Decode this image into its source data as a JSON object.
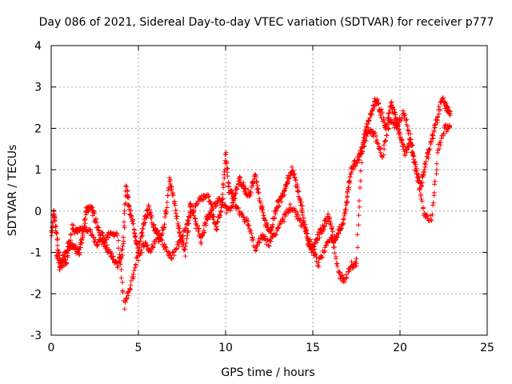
{
  "chart_data": {
    "type": "scatter",
    "title": "Day 086 of 2021, Sidereal Day-to-day VTEC variation (SDTVAR) for receiver p777",
    "xlabel": "GPS time / hours",
    "ylabel": "SDTVAR / TECUs",
    "xlim": [
      0,
      25
    ],
    "ylim": [
      -3,
      4
    ],
    "xticks": [
      0,
      5,
      10,
      15,
      20,
      25
    ],
    "yticks": [
      -3,
      -2,
      -1,
      0,
      1,
      2,
      3,
      4
    ],
    "grid": true,
    "marker": "+",
    "color": "#ff0000",
    "series": [
      {
        "name": "SDTVAR",
        "anchors": [
          [
            0.0,
            -0.7
          ],
          [
            0.15,
            0.0
          ],
          [
            0.3,
            -0.5
          ],
          [
            0.5,
            -1.4
          ],
          [
            0.7,
            -1.1
          ],
          [
            1.0,
            -0.8
          ],
          [
            1.3,
            -0.9
          ],
          [
            1.6,
            -1.0
          ],
          [
            1.8,
            -0.6
          ],
          [
            2.0,
            0.0
          ],
          [
            2.3,
            0.1
          ],
          [
            2.6,
            -0.3
          ],
          [
            2.9,
            -0.6
          ],
          [
            3.2,
            -0.9
          ],
          [
            3.5,
            -1.1
          ],
          [
            3.8,
            -1.3
          ],
          [
            4.1,
            -1.0
          ],
          [
            4.3,
            0.6
          ],
          [
            4.5,
            0.0
          ],
          [
            4.8,
            -0.5
          ],
          [
            5.0,
            -1.0
          ],
          [
            5.3,
            -0.3
          ],
          [
            5.6,
            0.1
          ],
          [
            5.9,
            -0.4
          ],
          [
            6.2,
            -0.7
          ],
          [
            6.5,
            -0.3
          ],
          [
            6.8,
            0.8
          ],
          [
            7.1,
            0.1
          ],
          [
            7.4,
            -0.6
          ],
          [
            7.7,
            -1.0
          ],
          [
            8.0,
            0.2
          ],
          [
            8.3,
            -0.3
          ],
          [
            8.6,
            -0.7
          ],
          [
            8.9,
            -0.2
          ],
          [
            9.2,
            0.0
          ],
          [
            9.5,
            -0.4
          ],
          [
            9.8,
            0.2
          ],
          [
            10.0,
            1.4
          ],
          [
            10.2,
            0.5
          ],
          [
            10.5,
            0.3
          ],
          [
            10.8,
            0.8
          ],
          [
            11.1,
            0.5
          ],
          [
            11.4,
            0.4
          ],
          [
            11.7,
            0.9
          ],
          [
            12.0,
            0.2
          ],
          [
            12.3,
            -0.3
          ],
          [
            12.6,
            -0.5
          ],
          [
            12.9,
            0.1
          ],
          [
            13.2,
            0.3
          ],
          [
            13.5,
            0.7
          ],
          [
            13.8,
            1.0
          ],
          [
            14.1,
            0.6
          ],
          [
            14.4,
            0.0
          ],
          [
            14.7,
            -0.7
          ],
          [
            15.0,
            -1.0
          ],
          [
            15.3,
            -0.6
          ],
          [
            15.6,
            -0.4
          ],
          [
            15.9,
            -0.1
          ],
          [
            16.2,
            -0.7
          ],
          [
            16.5,
            -0.5
          ],
          [
            16.8,
            -0.2
          ],
          [
            17.0,
            0.4
          ],
          [
            17.2,
            1.0
          ],
          [
            17.5,
            1.2
          ],
          [
            17.8,
            1.5
          ],
          [
            18.0,
            1.9
          ],
          [
            18.3,
            2.3
          ],
          [
            18.6,
            2.7
          ],
          [
            18.9,
            2.4
          ],
          [
            19.2,
            2.0
          ],
          [
            19.5,
            2.6
          ],
          [
            19.8,
            2.2
          ],
          [
            20.0,
            1.8
          ],
          [
            20.3,
            1.4
          ],
          [
            20.6,
            1.7
          ],
          [
            20.9,
            1.0
          ],
          [
            21.2,
            0.6
          ],
          [
            21.5,
            1.2
          ],
          [
            21.8,
            1.7
          ],
          [
            22.1,
            2.2
          ],
          [
            22.4,
            2.7
          ],
          [
            22.7,
            2.5
          ],
          [
            22.9,
            2.3
          ]
        ],
        "secondary": [
          [
            0.3,
            -1.1
          ],
          [
            0.6,
            -1.3
          ],
          [
            0.9,
            -1.2
          ],
          [
            1.2,
            -0.4
          ],
          [
            1.5,
            -0.5
          ],
          [
            1.8,
            -0.4
          ],
          [
            2.2,
            -0.5
          ],
          [
            2.6,
            -0.8
          ],
          [
            3.0,
            -0.7
          ],
          [
            3.4,
            -0.5
          ],
          [
            3.8,
            -0.6
          ],
          [
            4.2,
            -2.3
          ],
          [
            4.5,
            -1.9
          ],
          [
            4.9,
            -1.2
          ],
          [
            5.3,
            -0.8
          ],
          [
            5.7,
            -1.0
          ],
          [
            6.1,
            -0.5
          ],
          [
            6.5,
            -0.9
          ],
          [
            6.9,
            -1.1
          ],
          [
            7.3,
            -0.8
          ],
          [
            7.7,
            -0.4
          ],
          [
            8.1,
            0.0
          ],
          [
            8.5,
            0.3
          ],
          [
            8.9,
            0.4
          ],
          [
            9.3,
            0.1
          ],
          [
            9.7,
            0.3
          ],
          [
            10.1,
            0.0
          ],
          [
            10.5,
            0.2
          ],
          [
            10.9,
            -0.1
          ],
          [
            11.3,
            -0.3
          ],
          [
            11.7,
            -0.9
          ],
          [
            12.1,
            -0.6
          ],
          [
            12.5,
            -0.8
          ],
          [
            12.9,
            -0.5
          ],
          [
            13.3,
            -0.2
          ],
          [
            13.7,
            0.1
          ],
          [
            14.1,
            -0.1
          ],
          [
            14.5,
            -0.4
          ],
          [
            14.9,
            -0.8
          ],
          [
            15.3,
            -1.3
          ],
          [
            15.7,
            -0.9
          ],
          [
            16.1,
            -0.6
          ],
          [
            16.5,
            -1.5
          ],
          [
            16.8,
            -1.7
          ],
          [
            17.2,
            -1.3
          ],
          [
            17.5,
            -1.3
          ],
          [
            17.8,
            1.4
          ],
          [
            18.2,
            2.0
          ],
          [
            18.6,
            1.8
          ],
          [
            19.0,
            1.3
          ],
          [
            19.4,
            2.2
          ],
          [
            19.8,
            2.0
          ],
          [
            20.2,
            2.4
          ],
          [
            20.6,
            1.8
          ],
          [
            21.0,
            0.8
          ],
          [
            21.4,
            -0.1
          ],
          [
            21.8,
            -0.2
          ],
          [
            22.2,
            1.5
          ],
          [
            22.6,
            2.0
          ],
          [
            22.9,
            2.0
          ]
        ]
      }
    ]
  }
}
